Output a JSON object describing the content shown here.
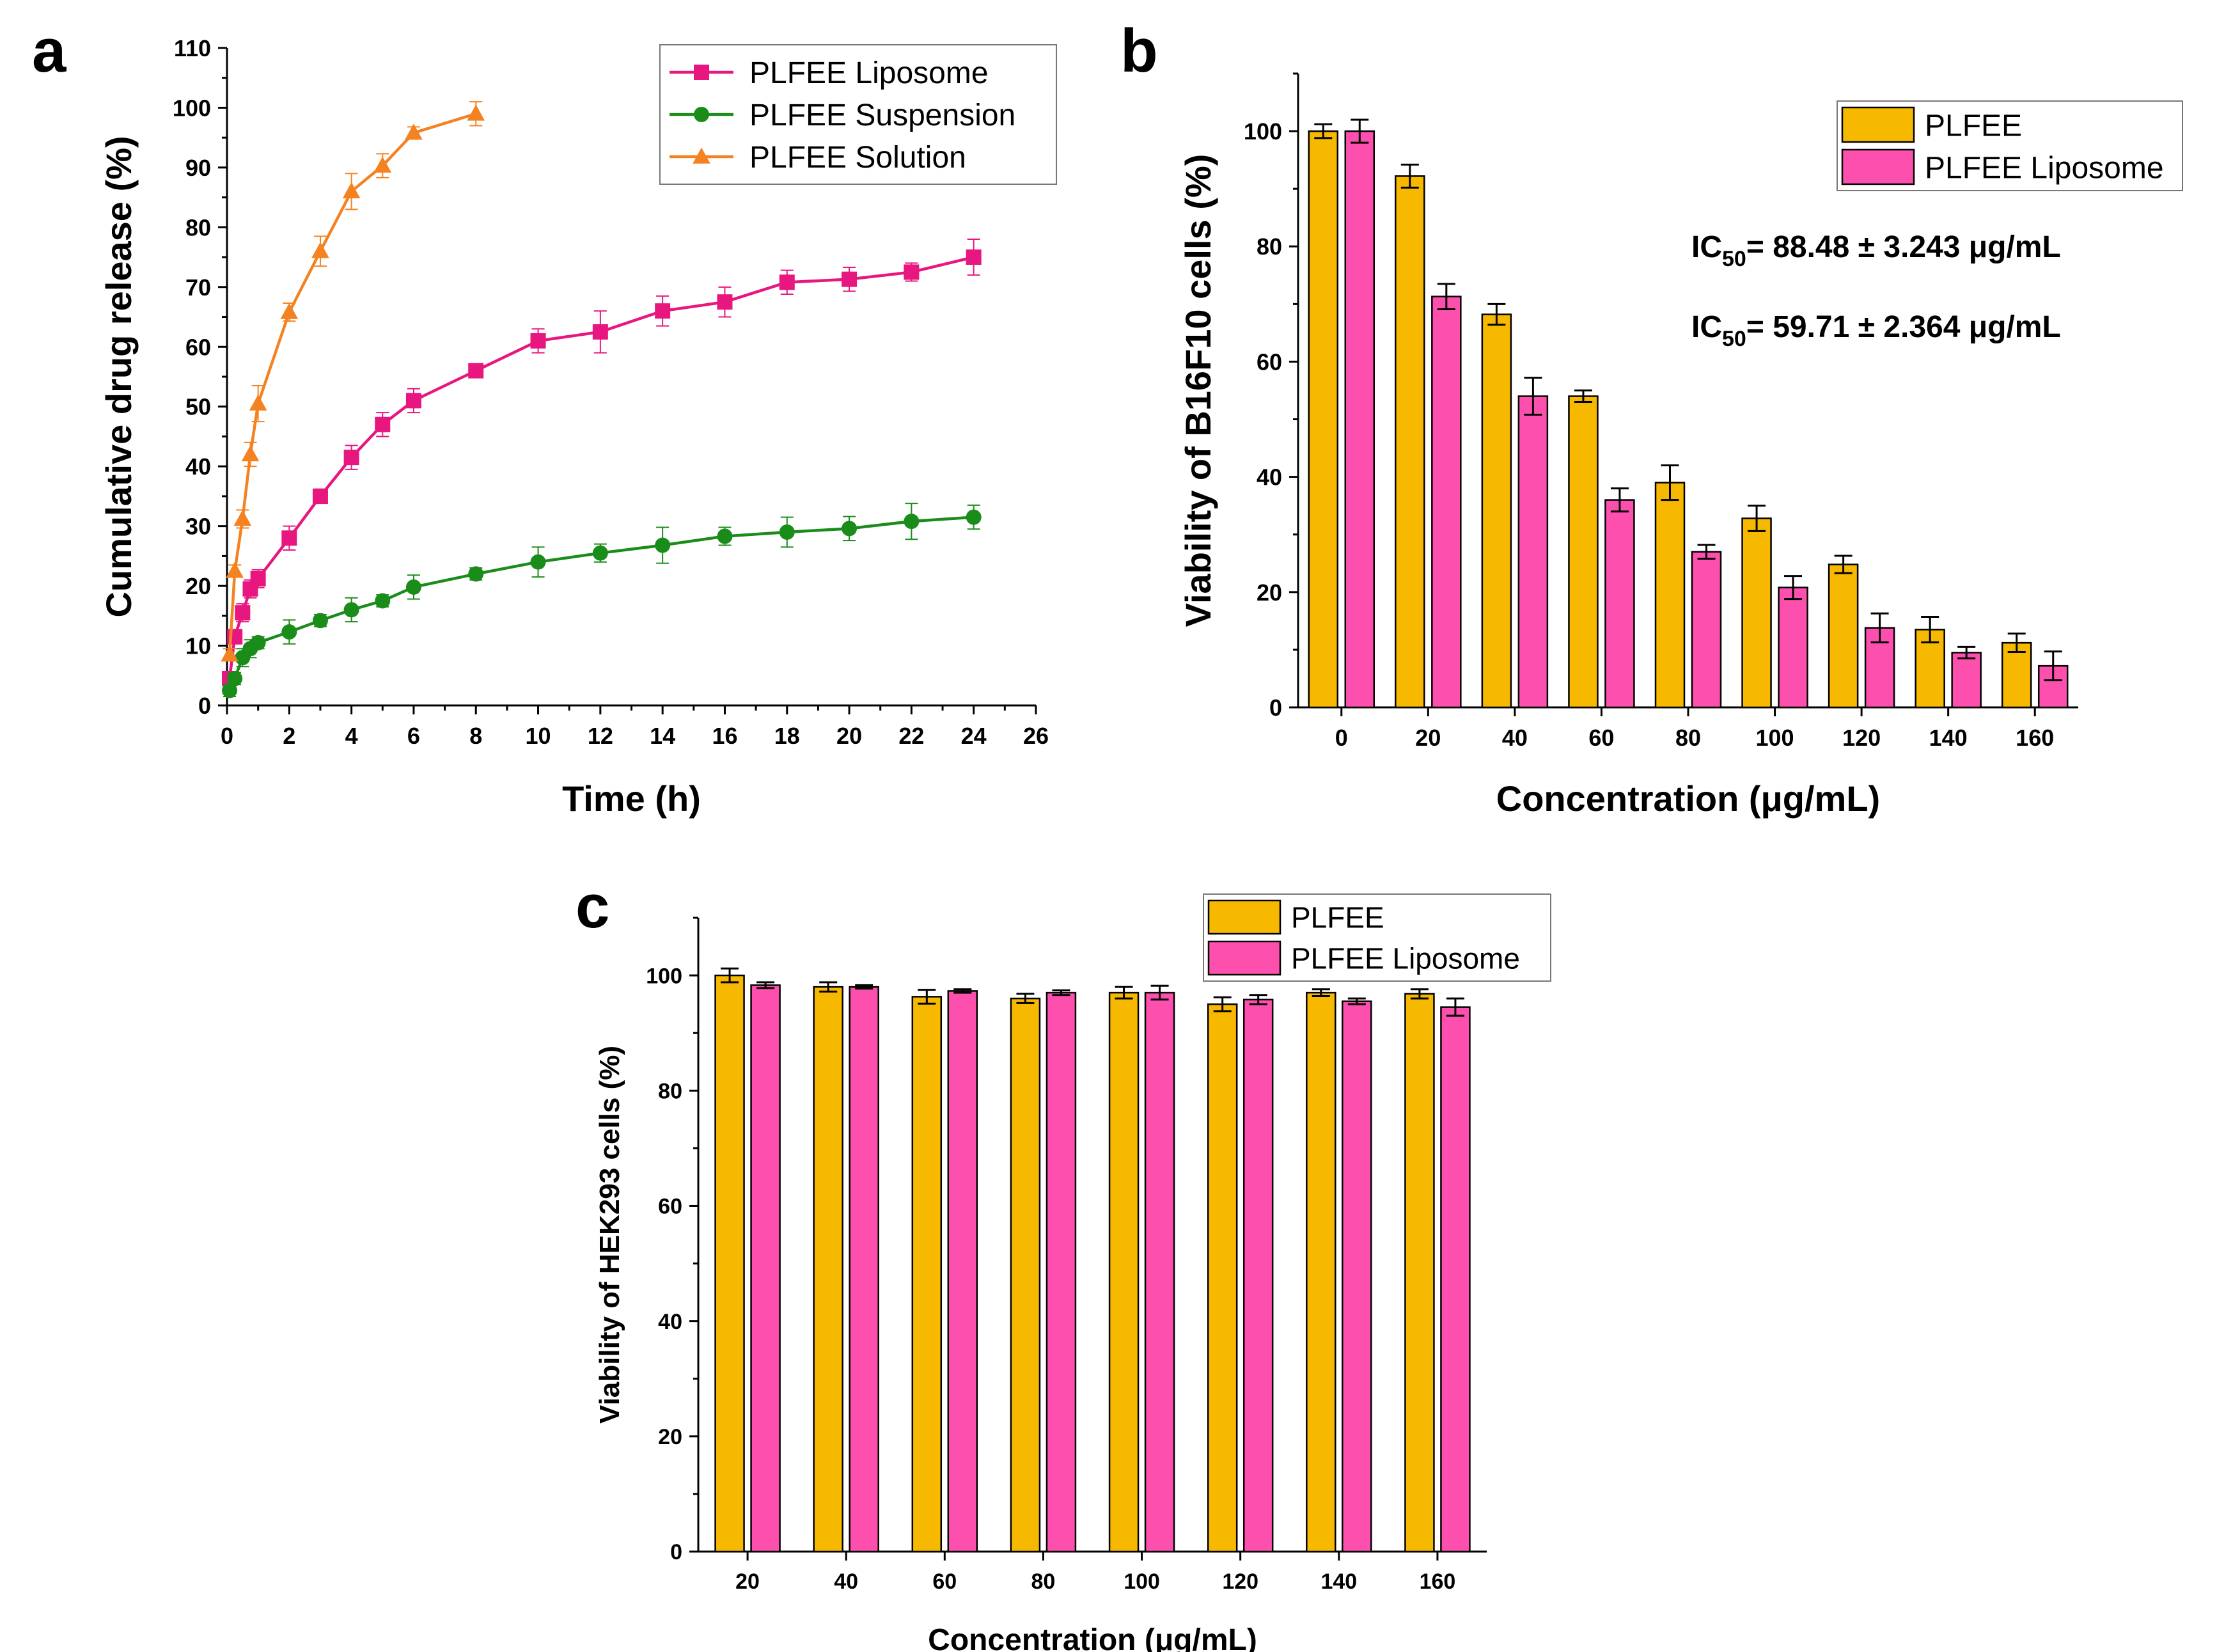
{
  "chart_data": [
    {
      "panel_label": "a",
      "type": "line",
      "xlabel": "Time (h)",
      "ylabel": "Cumulative drug release (%)",
      "xlim": [
        0,
        26
      ],
      "ylim": [
        0,
        110
      ],
      "xticks": [
        "0",
        "2",
        "4",
        "6",
        "8",
        "10",
        "12",
        "14",
        "16",
        "18",
        "20",
        "22",
        "24",
        "26"
      ],
      "yticks": [
        "0",
        "10",
        "20",
        "30",
        "40",
        "50",
        "60",
        "70",
        "80",
        "90",
        "100",
        "110"
      ],
      "legend_position": "top-right",
      "series": [
        {
          "name": "PLFEE Liposome",
          "color": "#e8167f",
          "marker": "square",
          "points": [
            {
              "x": 0.083,
              "y": 4.5,
              "err": 1.0
            },
            {
              "x": 0.25,
              "y": 11.5,
              "err": 1.2
            },
            {
              "x": 0.5,
              "y": 15.5,
              "err": 1.5
            },
            {
              "x": 0.75,
              "y": 19.5,
              "err": 1.5
            },
            {
              "x": 1,
              "y": 21.2,
              "err": 1.5
            },
            {
              "x": 2,
              "y": 28.0,
              "err": 2.0
            },
            {
              "x": 3,
              "y": 35.0,
              "err": 1.2
            },
            {
              "x": 4,
              "y": 41.5,
              "err": 2.0
            },
            {
              "x": 5,
              "y": 47.0,
              "err": 2.0
            },
            {
              "x": 6,
              "y": 51.0,
              "err": 2.0
            },
            {
              "x": 8,
              "y": 56.0,
              "err": 1.0
            },
            {
              "x": 10,
              "y": 61.0,
              "err": 2.0
            },
            {
              "x": 12,
              "y": 62.5,
              "err": 3.5
            },
            {
              "x": 14,
              "y": 66.0,
              "err": 2.5
            },
            {
              "x": 16,
              "y": 67.5,
              "err": 2.5
            },
            {
              "x": 18,
              "y": 70.8,
              "err": 2.0
            },
            {
              "x": 20,
              "y": 71.3,
              "err": 2.0
            },
            {
              "x": 22,
              "y": 72.5,
              "err": 1.5
            },
            {
              "x": 24,
              "y": 75.0,
              "err": 3.0
            }
          ]
        },
        {
          "name": "PLFEE Suspension",
          "color": "#1a8c1a",
          "marker": "circle",
          "points": [
            {
              "x": 0.083,
              "y": 2.5,
              "err": 1.0
            },
            {
              "x": 0.25,
              "y": 4.5,
              "err": 1.0
            },
            {
              "x": 0.5,
              "y": 8.0,
              "err": 1.5
            },
            {
              "x": 0.75,
              "y": 9.5,
              "err": 1.5
            },
            {
              "x": 1,
              "y": 10.5,
              "err": 1.0
            },
            {
              "x": 2,
              "y": 12.3,
              "err": 2.0
            },
            {
              "x": 3,
              "y": 14.2,
              "err": 1.0
            },
            {
              "x": 4,
              "y": 16.0,
              "err": 2.0
            },
            {
              "x": 5,
              "y": 17.5,
              "err": 1.0
            },
            {
              "x": 6,
              "y": 19.8,
              "err": 2.0
            },
            {
              "x": 8,
              "y": 22.0,
              "err": 1.0
            },
            {
              "x": 10,
              "y": 24.0,
              "err": 2.5
            },
            {
              "x": 12,
              "y": 25.5,
              "err": 1.5
            },
            {
              "x": 14,
              "y": 26.8,
              "err": 3.0
            },
            {
              "x": 16,
              "y": 28.3,
              "err": 1.5
            },
            {
              "x": 18,
              "y": 29.0,
              "err": 2.5
            },
            {
              "x": 20,
              "y": 29.6,
              "err": 2.0
            },
            {
              "x": 22,
              "y": 30.8,
              "err": 3.0
            },
            {
              "x": 24,
              "y": 31.5,
              "err": 2.0
            }
          ]
        },
        {
          "name": "PLFEE Solution",
          "color": "#f58220",
          "marker": "triangle",
          "points": [
            {
              "x": 0.083,
              "y": 8.5,
              "err": 1.0
            },
            {
              "x": 0.25,
              "y": 22.5,
              "err": 1.0
            },
            {
              "x": 0.5,
              "y": 31.2,
              "err": 1.5
            },
            {
              "x": 0.75,
              "y": 42.0,
              "err": 2.0
            },
            {
              "x": 1,
              "y": 50.5,
              "err": 3.0
            },
            {
              "x": 2,
              "y": 65.8,
              "err": 1.5
            },
            {
              "x": 3,
              "y": 76.0,
              "err": 2.5
            },
            {
              "x": 4,
              "y": 86.0,
              "err": 3.0
            },
            {
              "x": 5,
              "y": 90.3,
              "err": 2.0
            },
            {
              "x": 6,
              "y": 95.8,
              "err": 1.0
            },
            {
              "x": 8,
              "y": 99.0,
              "err": 2.0
            }
          ]
        }
      ]
    },
    {
      "panel_label": "b",
      "type": "bar",
      "xlabel": "Concentration (μg/mL)",
      "ylabel": "Viability of B16F10 cells (%)",
      "ylim": [
        0,
        110
      ],
      "yticks": [
        "0",
        "20",
        "40",
        "60",
        "80",
        "100"
      ],
      "categories": [
        "0",
        "20",
        "40",
        "60",
        "80",
        "100",
        "120",
        "140",
        "160"
      ],
      "legend_position": "top-right",
      "series": [
        {
          "name": "PLFEE",
          "color": "#f7b800",
          "values": [
            100,
            92.2,
            68.2,
            54.0,
            39.0,
            32.8,
            24.8,
            13.5,
            11.2
          ],
          "errors": [
            1.2,
            2.0,
            1.8,
            1.0,
            3.0,
            2.2,
            1.5,
            2.2,
            1.6
          ]
        },
        {
          "name": "PLFEE Liposome",
          "color": "#fd4fae",
          "values": [
            100,
            71.3,
            54.0,
            36.0,
            27.0,
            20.8,
            13.8,
            9.5,
            7.2
          ],
          "errors": [
            2.0,
            2.2,
            3.2,
            2.0,
            1.2,
            2.0,
            2.5,
            1.0,
            2.5
          ]
        }
      ],
      "annotations": [
        {
          "prefix": "IC",
          "subscript": "50",
          "text": "= 88.48 ± 3.243 μg/mL"
        },
        {
          "prefix": "IC",
          "subscript": "50",
          "text": "= 59.71 ± 2.364 μg/mL"
        }
      ]
    },
    {
      "panel_label": "c",
      "type": "bar",
      "xlabel": "Concentration (μg/mL)",
      "ylabel": "Viability of HEK293 cells (%)",
      "ylim": [
        0,
        110
      ],
      "yticks": [
        "0",
        "20",
        "40",
        "60",
        "80",
        "100"
      ],
      "categories": [
        "20",
        "40",
        "60",
        "80",
        "100",
        "120",
        "140",
        "160"
      ],
      "legend_position": "top-right",
      "series": [
        {
          "name": "PLFEE",
          "color": "#f7b800",
          "values": [
            100,
            98.0,
            96.3,
            96.0,
            97.0,
            95.0,
            97.0,
            96.8
          ],
          "errors": [
            1.2,
            0.8,
            1.2,
            0.8,
            1.0,
            1.2,
            0.6,
            0.8
          ]
        },
        {
          "name": "PLFEE Liposome",
          "color": "#fd4fae",
          "values": [
            98.3,
            98.0,
            97.3,
            97.0,
            97.0,
            95.8,
            95.5,
            94.5
          ],
          "errors": [
            0.5,
            0.3,
            0.3,
            0.4,
            1.2,
            0.8,
            0.5,
            1.5
          ]
        }
      ]
    }
  ]
}
